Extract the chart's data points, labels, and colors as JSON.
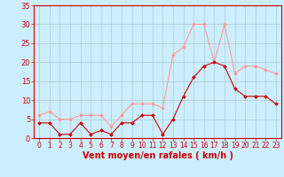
{
  "x": [
    0,
    1,
    2,
    3,
    4,
    5,
    6,
    7,
    8,
    9,
    10,
    11,
    12,
    13,
    14,
    15,
    16,
    17,
    18,
    19,
    20,
    21,
    22,
    23
  ],
  "wind_mean": [
    4,
    4,
    1,
    1,
    4,
    1,
    2,
    1,
    4,
    4,
    6,
    6,
    1,
    5,
    11,
    16,
    19,
    20,
    19,
    13,
    11,
    11,
    11,
    9
  ],
  "wind_gust": [
    6,
    7,
    5,
    5,
    6,
    6,
    6,
    3,
    6,
    9,
    9,
    9,
    8,
    22,
    24,
    30,
    30,
    20,
    30,
    17,
    19,
    19,
    18,
    17
  ],
  "bg_color": "#cceeff",
  "grid_color": "#aacccc",
  "mean_color": "#cc0000",
  "gust_color": "#ff9999",
  "xlabel": "Vent moyen/en rafales ( km/h )",
  "xlabel_color": "#cc0000",
  "tick_color": "#cc0000",
  "spine_color": "#cc0000",
  "ylim": [
    0,
    35
  ],
  "yticks": [
    0,
    5,
    10,
    15,
    20,
    25,
    30,
    35
  ],
  "xlim": [
    -0.5,
    23.5
  ]
}
